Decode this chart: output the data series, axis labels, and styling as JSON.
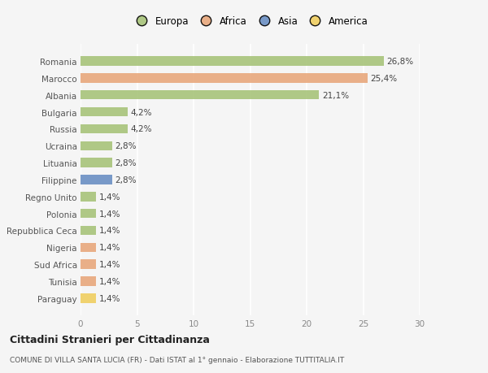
{
  "categories": [
    "Romania",
    "Marocco",
    "Albania",
    "Bulgaria",
    "Russia",
    "Ucraina",
    "Lituania",
    "Filippine",
    "Regno Unito",
    "Polonia",
    "Repubblica Ceca",
    "Nigeria",
    "Sud Africa",
    "Tunisia",
    "Paraguay"
  ],
  "values": [
    26.8,
    25.4,
    21.1,
    4.2,
    4.2,
    2.8,
    2.8,
    2.8,
    1.4,
    1.4,
    1.4,
    1.4,
    1.4,
    1.4,
    1.4
  ],
  "labels": [
    "26,8%",
    "25,4%",
    "21,1%",
    "4,2%",
    "4,2%",
    "2,8%",
    "2,8%",
    "2,8%",
    "1,4%",
    "1,4%",
    "1,4%",
    "1,4%",
    "1,4%",
    "1,4%",
    "1,4%"
  ],
  "continent": [
    "Europa",
    "Africa",
    "Europa",
    "Europa",
    "Europa",
    "Europa",
    "Europa",
    "Asia",
    "Europa",
    "Europa",
    "Europa",
    "Africa",
    "Africa",
    "Africa",
    "America"
  ],
  "colors": {
    "Europa": "#a8c47a",
    "Africa": "#e8a87c",
    "Asia": "#6b8fc4",
    "America": "#f0cf60"
  },
  "legend_items": [
    "Europa",
    "Africa",
    "Asia",
    "America"
  ],
  "legend_colors": [
    "#a8c47a",
    "#e8a87c",
    "#6b8fc4",
    "#f0cf60"
  ],
  "xlim": [
    0,
    30
  ],
  "xticks": [
    0,
    5,
    10,
    15,
    20,
    25,
    30
  ],
  "title": "Cittadini Stranieri per Cittadinanza",
  "subtitle": "COMUNE DI VILLA SANTA LUCIA (FR) - Dati ISTAT al 1° gennaio - Elaborazione TUTTITALIA.IT",
  "bg_color": "#f5f5f5",
  "grid_color": "#ffffff",
  "bar_height": 0.55
}
